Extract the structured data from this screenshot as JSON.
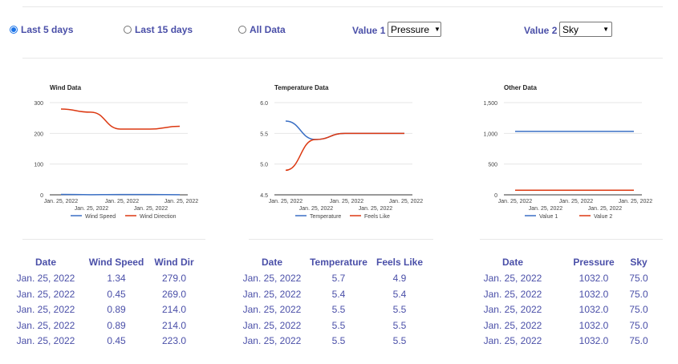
{
  "controls": {
    "range_options": [
      {
        "label": "Last 5 days",
        "checked": true
      },
      {
        "label": "Last 15 days",
        "checked": false
      },
      {
        "label": "All Data",
        "checked": false
      }
    ],
    "value1_label": "Value 1",
    "value1_selected": "Pressure",
    "value2_label": "Value 2",
    "value2_selected": "Sky"
  },
  "colors": {
    "series1": "#3a6fc4",
    "series2": "#dc3912",
    "accent": "#4a4fa8"
  },
  "chart_data": [
    {
      "type": "line",
      "title": "Wind Data",
      "x": [
        "Jan. 25, 2022",
        "Jan. 25, 2022",
        "Jan. 25, 2022",
        "Jan. 25, 2022",
        "Jan. 25, 2022"
      ],
      "x_tick_labels": [
        "Jan. 25, 2022",
        "Jan. 25, 2022",
        "Jan. 25, 2022",
        "Jan. 25, 2022",
        "Jan. 25, 2022"
      ],
      "y_ticks": [
        "300",
        "200",
        "100",
        "0"
      ],
      "ylim": [
        0,
        300
      ],
      "series": [
        {
          "name": "Wind Speed",
          "values": [
            1.34,
            0.45,
            0.89,
            0.89,
            0.45
          ]
        },
        {
          "name": "Wind Direction",
          "values": [
            279.0,
            269.0,
            214.0,
            214.0,
            223.0
          ]
        }
      ],
      "legend": "bottom",
      "grid": true
    },
    {
      "type": "line",
      "title": "Temperature Data",
      "x": [
        "Jan. 25, 2022",
        "Jan. 25, 2022",
        "Jan. 25, 2022",
        "Jan. 25, 2022",
        "Jan. 25, 2022"
      ],
      "x_tick_labels": [
        "Jan. 25, 2022",
        "Jan. 25, 2022",
        "Jan. 25, 2022",
        "Jan. 25, 2022",
        "Jan. 25, 2022"
      ],
      "y_ticks": [
        "6.0",
        "5.5",
        "5.0",
        "4.5"
      ],
      "ylim": [
        4.5,
        6.0
      ],
      "series": [
        {
          "name": "Temperature",
          "values": [
            5.7,
            5.4,
            5.5,
            5.5,
            5.5
          ]
        },
        {
          "name": "Feels Like",
          "values": [
            4.9,
            5.4,
            5.5,
            5.5,
            5.5
          ]
        }
      ],
      "legend": "bottom",
      "grid": true
    },
    {
      "type": "line",
      "title": "Other Data",
      "x": [
        "Jan. 25, 2022",
        "Jan. 25, 2022",
        "Jan. 25, 2022",
        "Jan. 25, 2022",
        "Jan. 25, 2022"
      ],
      "x_tick_labels": [
        "Jan. 25, 2022",
        "Jan. 25, 2022",
        "Jan. 25, 2022",
        "Jan. 25, 2022",
        "Jan. 25, 2022"
      ],
      "y_ticks": [
        "1,500",
        "1,000",
        "500",
        "0"
      ],
      "ylim": [
        0,
        1500
      ],
      "series": [
        {
          "name": "Value 1",
          "values": [
            1032.0,
            1032.0,
            1032.0,
            1032.0,
            1032.0
          ]
        },
        {
          "name": "Value 2",
          "values": [
            75.0,
            75.0,
            75.0,
            75.0,
            75.0
          ]
        }
      ],
      "legend": "bottom",
      "grid": true
    }
  ],
  "tables": [
    {
      "headers": [
        "Date",
        "Wind Speed",
        "Wind Dir"
      ],
      "rows": [
        [
          "Jan. 25, 2022",
          "1.34",
          "279.0"
        ],
        [
          "Jan. 25, 2022",
          "0.45",
          "269.0"
        ],
        [
          "Jan. 25, 2022",
          "0.89",
          "214.0"
        ],
        [
          "Jan. 25, 2022",
          "0.89",
          "214.0"
        ],
        [
          "Jan. 25, 2022",
          "0.45",
          "223.0"
        ]
      ]
    },
    {
      "headers": [
        "Date",
        "Temperature",
        "Feels Like"
      ],
      "rows": [
        [
          "Jan. 25, 2022",
          "5.7",
          "4.9"
        ],
        [
          "Jan. 25, 2022",
          "5.4",
          "5.4"
        ],
        [
          "Jan. 25, 2022",
          "5.5",
          "5.5"
        ],
        [
          "Jan. 25, 2022",
          "5.5",
          "5.5"
        ],
        [
          "Jan. 25, 2022",
          "5.5",
          "5.5"
        ]
      ]
    },
    {
      "headers": [
        "Date",
        "Pressure",
        "Sky"
      ],
      "rows": [
        [
          "Jan. 25, 2022",
          "1032.0",
          "75.0"
        ],
        [
          "Jan. 25, 2022",
          "1032.0",
          "75.0"
        ],
        [
          "Jan. 25, 2022",
          "1032.0",
          "75.0"
        ],
        [
          "Jan. 25, 2022",
          "1032.0",
          "75.0"
        ],
        [
          "Jan. 25, 2022",
          "1032.0",
          "75.0"
        ]
      ]
    }
  ]
}
